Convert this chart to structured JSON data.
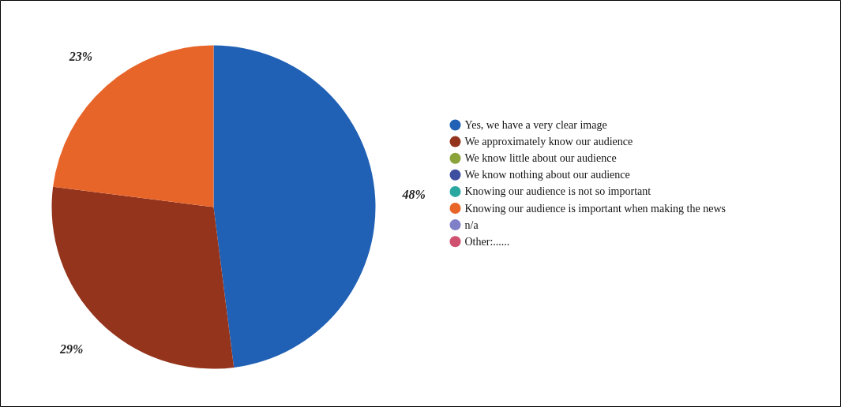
{
  "chart_data": {
    "type": "pie",
    "categories": [
      "Yes, we have a very clear image",
      "We approximately know our audience",
      "We know little about our audience",
      "We know nothing about our audience",
      "Knowing our audience is not so important",
      "Knowing our audience is important when making the news",
      "n/a",
      "Other:......"
    ],
    "values": [
      48,
      29,
      0,
      0,
      0,
      23,
      0,
      0
    ],
    "colors": [
      "#2161b5",
      "#94341c",
      "#8aa43a",
      "#3f4fa0",
      "#2aa8a0",
      "#e8652a",
      "#8080c8",
      "#d05070"
    ],
    "value_labels": [
      "48%",
      "29%",
      null,
      null,
      null,
      "23%",
      null,
      null
    ],
    "legend": "right"
  }
}
